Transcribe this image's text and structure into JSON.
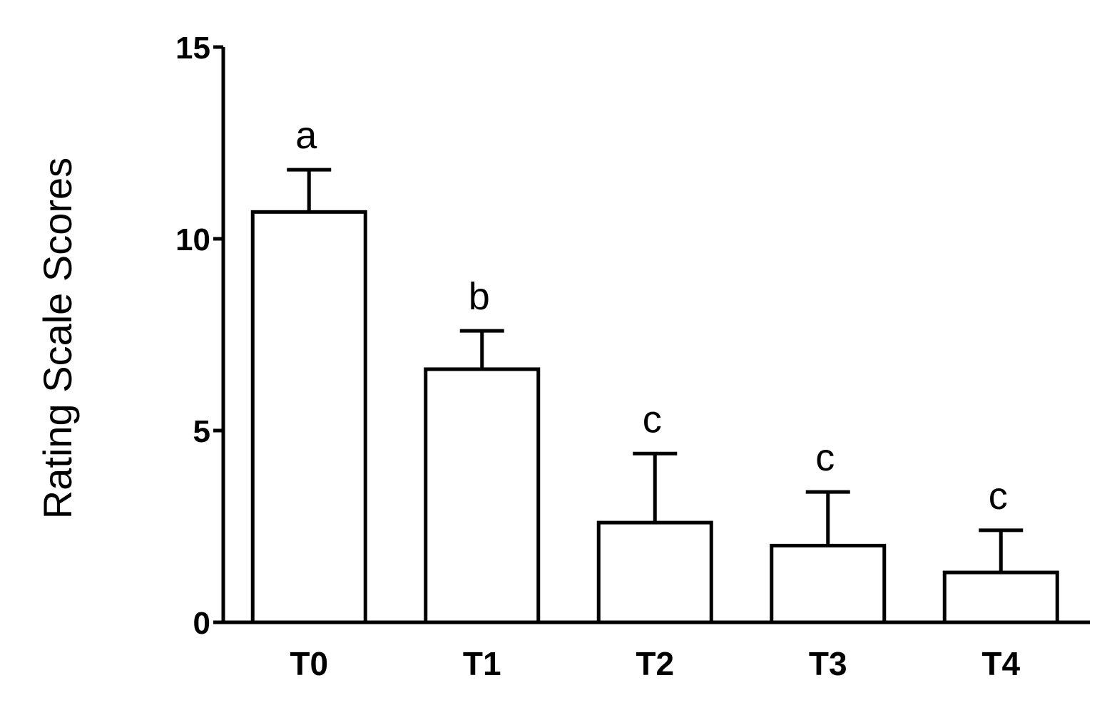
{
  "chart_data": {
    "type": "bar",
    "title": "",
    "xlabel": "",
    "ylabel": "Rating Scale Scores",
    "categories": [
      "T0",
      "T1",
      "T2",
      "T3",
      "T4"
    ],
    "values": [
      10.7,
      6.6,
      2.6,
      2.0,
      1.3
    ],
    "error_upper": [
      11.8,
      7.6,
      4.4,
      3.4,
      2.4
    ],
    "significance_labels": [
      "a",
      "b",
      "c",
      "c",
      "c"
    ],
    "ylim": [
      0,
      15
    ],
    "yticks": [
      "0",
      "5",
      "10",
      "15"
    ],
    "grid": false,
    "legend": "none",
    "colors": {
      "bar_fill": "#ffffff",
      "bar_stroke": "#000000",
      "axis": "#000000"
    }
  }
}
